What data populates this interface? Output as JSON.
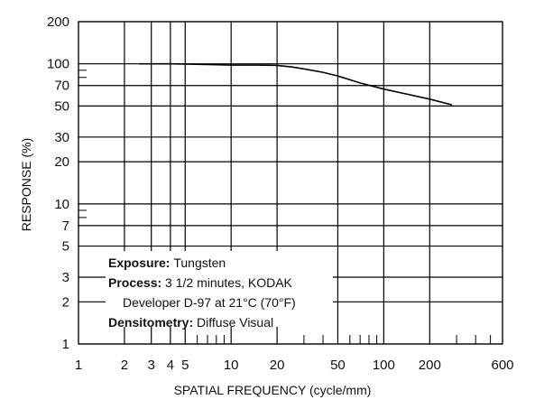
{
  "chart_data": {
    "type": "line",
    "xscale": "log",
    "yscale": "log",
    "xlim": [
      1,
      600
    ],
    "ylim": [
      1,
      200
    ],
    "xlabel": "SPATIAL FREQUENCY (cycle/mm)",
    "ylabel": "RESPONSE (%)",
    "xticks": [
      1,
      2,
      3,
      4,
      5,
      10,
      20,
      50,
      100,
      200,
      600
    ],
    "yticks": [
      1,
      2,
      3,
      5,
      7,
      10,
      20,
      30,
      50,
      70,
      100,
      200
    ],
    "x_gridlines": [
      1,
      2,
      3,
      4,
      5,
      10,
      20,
      50,
      100,
      200,
      600
    ],
    "y_gridlines": [
      1,
      2,
      3,
      5,
      7,
      10,
      20,
      30,
      50,
      70,
      100,
      200
    ],
    "grid": true,
    "series": [
      {
        "x": [
          2.5,
          3,
          4,
          5,
          7,
          10,
          15,
          20,
          25,
          30,
          40,
          50,
          70,
          100,
          150,
          200,
          280
        ],
        "y": [
          100,
          100,
          100,
          99.5,
          99,
          98,
          98,
          97.5,
          95,
          92,
          87,
          82,
          73,
          66,
          60,
          56,
          51
        ]
      }
    ],
    "annotation": [
      {
        "label": "Exposure:",
        "value": "Tungsten"
      },
      {
        "label": "Process:",
        "value": "3 1/2 minutes, KODAK"
      },
      {
        "label": "",
        "value": "Developer D-97 at 21°C (70°F)"
      },
      {
        "label": "Densitometry:",
        "value": "Diffuse Visual"
      }
    ]
  }
}
